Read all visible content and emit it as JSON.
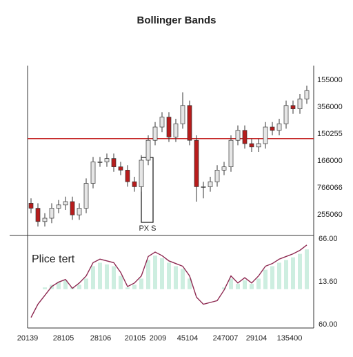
{
  "chart_data": {
    "type": "candlestick",
    "title": "Bollinger Bands",
    "annotation": "PX S",
    "lower_label": "Plice tert",
    "ylim": [
      0,
      100
    ],
    "y_axis_labels": [
      "155000",
      "356000",
      "150255",
      "166000",
      "766066",
      "255060"
    ],
    "reference_line": 58,
    "reference_color": "#c62828",
    "up_color": "#e6e6e6",
    "down_color": "#b71c1c",
    "open": [
      19,
      16,
      8,
      10,
      16,
      18,
      20,
      12,
      16,
      31,
      44,
      44,
      46,
      41,
      39,
      32,
      29,
      45,
      57,
      65,
      71,
      59,
      67,
      78,
      57,
      29,
      29,
      32,
      39,
      41,
      57,
      63,
      55,
      53,
      55,
      65,
      63,
      67,
      78,
      76,
      82
    ],
    "close": [
      16,
      8,
      10,
      16,
      18,
      20,
      12,
      16,
      31,
      44,
      44,
      46,
      41,
      39,
      32,
      29,
      45,
      57,
      65,
      71,
      59,
      67,
      78,
      57,
      29,
      29,
      32,
      39,
      41,
      57,
      63,
      55,
      53,
      55,
      65,
      63,
      67,
      78,
      76,
      82,
      87
    ],
    "high": [
      22,
      19,
      13,
      19,
      21,
      23,
      23,
      19,
      34,
      47,
      47,
      49,
      49,
      44,
      42,
      35,
      48,
      60,
      68,
      74,
      74,
      70,
      86,
      81,
      60,
      32,
      35,
      42,
      44,
      60,
      66,
      66,
      58,
      58,
      68,
      68,
      70,
      81,
      81,
      85,
      90
    ],
    "low": [
      13,
      5,
      5,
      7,
      13,
      15,
      9,
      9,
      13,
      28,
      41,
      41,
      38,
      36,
      29,
      26,
      26,
      42,
      54,
      62,
      56,
      56,
      64,
      54,
      20,
      22,
      26,
      29,
      36,
      38,
      54,
      52,
      50,
      50,
      52,
      60,
      60,
      64,
      73,
      73,
      79
    ],
    "lower": {
      "ylim": [
        0,
        100
      ],
      "y_axis_labels": [
        "66.00",
        "13.60",
        "60.00"
      ],
      "line_color": "#8e2a52",
      "hist_color": "#cdeee0",
      "histogram_base": 40,
      "line": [
        8,
        23,
        33,
        43,
        48,
        51,
        41,
        47,
        55,
        70,
        74,
        72,
        70,
        59,
        43,
        47,
        55,
        77,
        82,
        78,
        72,
        69,
        66,
        55,
        31,
        23,
        25,
        27,
        39,
        55,
        47,
        53,
        47,
        55,
        66,
        69,
        74,
        77,
        80,
        84,
        90
      ],
      "histogram": [
        40,
        40,
        42,
        45,
        48,
        50,
        42,
        45,
        52,
        66,
        70,
        68,
        66,
        55,
        42,
        45,
        52,
        73,
        78,
        75,
        70,
        66,
        63,
        52,
        40,
        40,
        40,
        40,
        42,
        52,
        46,
        50,
        46,
        52,
        62,
        66,
        70,
        73,
        76,
        80,
        85
      ]
    },
    "x_labels": [
      "20139",
      "28105",
      "28106",
      "20105",
      "2009",
      "45104",
      "247007",
      "29104",
      "135400"
    ]
  }
}
